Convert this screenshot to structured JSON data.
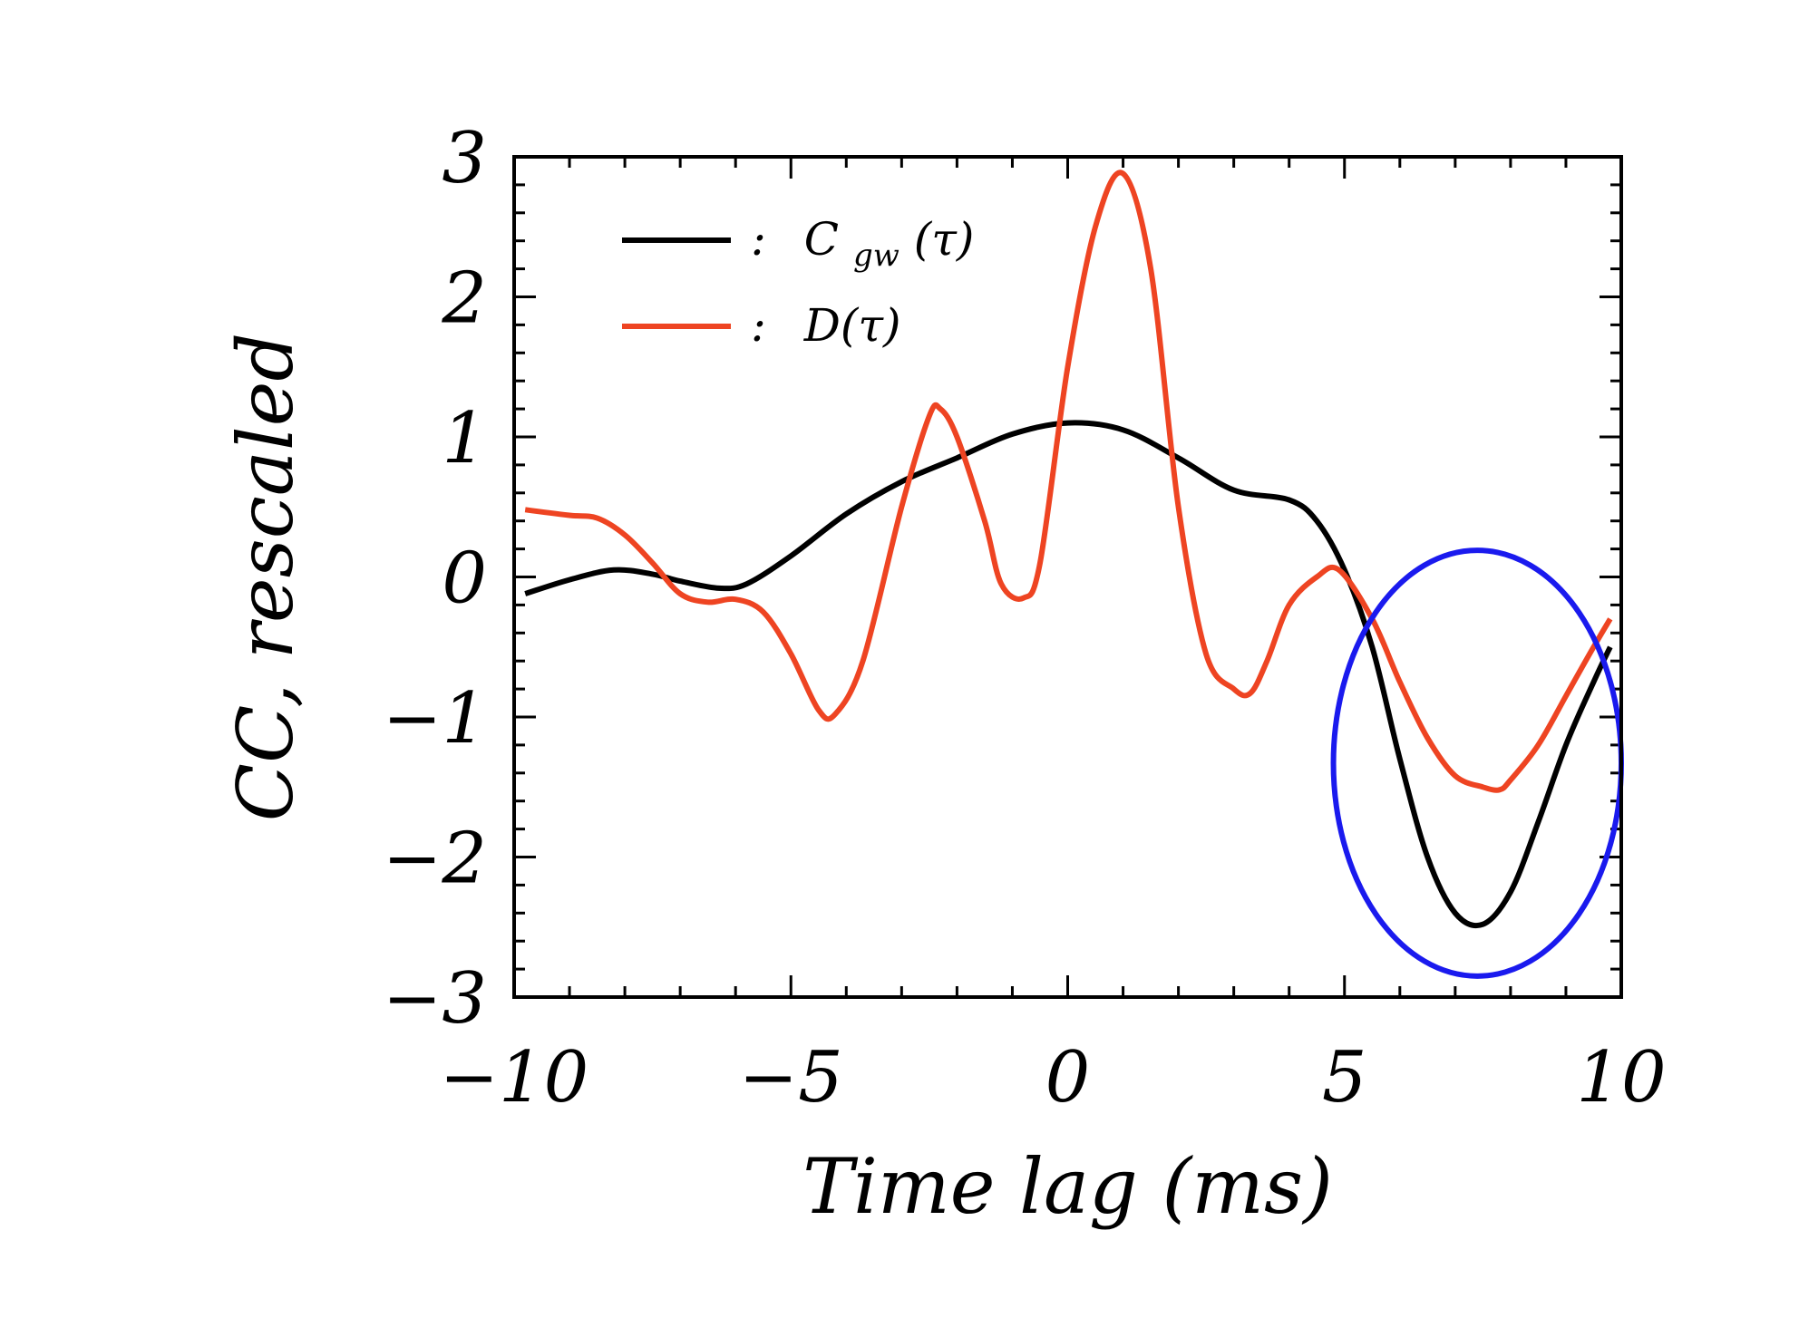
{
  "chart_data": {
    "type": "line",
    "xlabel": "Time lag (ms)",
    "ylabel": "CC, rescaled",
    "xlim": [
      -10,
      10
    ],
    "ylim": [
      -3,
      3
    ],
    "x_ticks": [
      -10,
      -5,
      0,
      5,
      10
    ],
    "x_tick_labels": [
      "−10",
      "−5",
      "0",
      "5",
      "10"
    ],
    "y_ticks": [
      -3,
      -2,
      -1,
      0,
      1,
      2,
      3
    ],
    "y_tick_labels": [
      "−3",
      "−2",
      "−1",
      "0",
      "1",
      "2",
      "3"
    ],
    "legend": {
      "placement": "top-left",
      "entries": [
        {
          "separator": ":",
          "label_main": "C",
          "label_sub": "gw",
          "label_rest": "(τ)",
          "color": "#000000"
        },
        {
          "separator": ":",
          "label_main": "D(τ)",
          "label_sub": "",
          "label_rest": "",
          "color": "#ee4422"
        }
      ]
    },
    "series": [
      {
        "name": "C_gw(tau)",
        "color": "#000000",
        "x": [
          -9.8,
          -9.0,
          -8.2,
          -7.5,
          -7.0,
          -6.3,
          -5.8,
          -5.0,
          -4.0,
          -3.0,
          -2.0,
          -1.0,
          0.0,
          1.0,
          2.0,
          3.0,
          4.0,
          4.5,
          5.0,
          5.5,
          6.0,
          6.5,
          7.0,
          7.5,
          8.0,
          8.5,
          9.0,
          9.5,
          9.8
        ],
        "y": [
          -0.12,
          -0.02,
          0.05,
          0.02,
          -0.03,
          -0.08,
          -0.05,
          0.15,
          0.45,
          0.68,
          0.85,
          1.02,
          1.1,
          1.05,
          0.85,
          0.62,
          0.55,
          0.4,
          0.05,
          -0.5,
          -1.3,
          -2.0,
          -2.4,
          -2.48,
          -2.25,
          -1.75,
          -1.2,
          -0.75,
          -0.5
        ]
      },
      {
        "name": "D(tau)",
        "color": "#ee4422",
        "x": [
          -9.8,
          -9.0,
          -8.5,
          -8.0,
          -7.5,
          -7.0,
          -6.5,
          -6.0,
          -5.5,
          -5.0,
          -4.5,
          -4.2,
          -3.7,
          -3.0,
          -2.5,
          -2.3,
          -2.0,
          -1.5,
          -1.2,
          -0.8,
          -0.5,
          0.0,
          0.5,
          1.0,
          1.5,
          2.0,
          2.5,
          3.0,
          3.3,
          3.6,
          4.0,
          4.5,
          4.9,
          5.5,
          6.0,
          6.5,
          7.0,
          7.5,
          7.8,
          8.0,
          8.5,
          9.0,
          9.5,
          9.8
        ],
        "y": [
          0.48,
          0.44,
          0.42,
          0.3,
          0.1,
          -0.12,
          -0.18,
          -0.16,
          -0.25,
          -0.55,
          -0.95,
          -0.98,
          -0.6,
          0.5,
          1.15,
          1.2,
          1.0,
          0.4,
          -0.05,
          -0.15,
          0.1,
          1.5,
          2.5,
          2.88,
          2.2,
          0.5,
          -0.55,
          -0.8,
          -0.83,
          -0.6,
          -0.2,
          0.0,
          0.05,
          -0.3,
          -0.75,
          -1.15,
          -1.42,
          -1.5,
          -1.52,
          -1.45,
          -1.2,
          -0.85,
          -0.5,
          -0.3
        ]
      }
    ],
    "annotations": [
      {
        "type": "ellipse",
        "color": "#1a1aee",
        "center_x": 7.4,
        "center_y": -1.33,
        "radius_x": 2.6,
        "radius_y": 1.52
      }
    ]
  }
}
